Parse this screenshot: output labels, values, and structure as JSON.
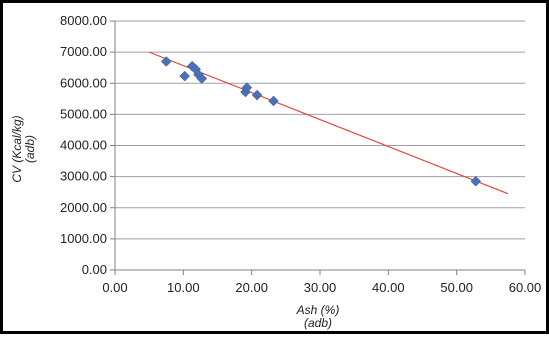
{
  "chart_data": {
    "type": "scatter",
    "title": "",
    "xlabel": [
      "Ash (%)",
      "(adb)"
    ],
    "ylabel": [
      "CV (Kcal/kg)",
      "(adb)"
    ],
    "xlim": [
      0,
      60
    ],
    "ylim": [
      0,
      8000
    ],
    "x_ticks": [
      "0.00",
      "10.00",
      "20.00",
      "30.00",
      "40.00",
      "50.00",
      "60.00"
    ],
    "y_ticks": [
      "0.00",
      "1000.00",
      "2000.00",
      "3000.00",
      "4000.00",
      "5000.00",
      "6000.00",
      "7000.00",
      "8000.00"
    ],
    "grid": "horizontal",
    "legend": "none",
    "points": [
      {
        "x": 7.5,
        "y": 6700
      },
      {
        "x": 10.2,
        "y": 6230
      },
      {
        "x": 11.3,
        "y": 6550
      },
      {
        "x": 11.8,
        "y": 6450
      },
      {
        "x": 12.2,
        "y": 6280
      },
      {
        "x": 12.7,
        "y": 6150
      },
      {
        "x": 19.1,
        "y": 5720
      },
      {
        "x": 19.3,
        "y": 5860
      },
      {
        "x": 20.8,
        "y": 5620
      },
      {
        "x": 23.2,
        "y": 5430
      },
      {
        "x": 52.8,
        "y": 2850
      }
    ],
    "trendline": {
      "x": [
        5,
        57.5
      ],
      "y": [
        7000,
        2450
      ]
    },
    "colors": {
      "marker": "#4A70B5",
      "trendline": "#E0483C",
      "grid": "#A0A0A0",
      "axis": "#808080"
    }
  }
}
